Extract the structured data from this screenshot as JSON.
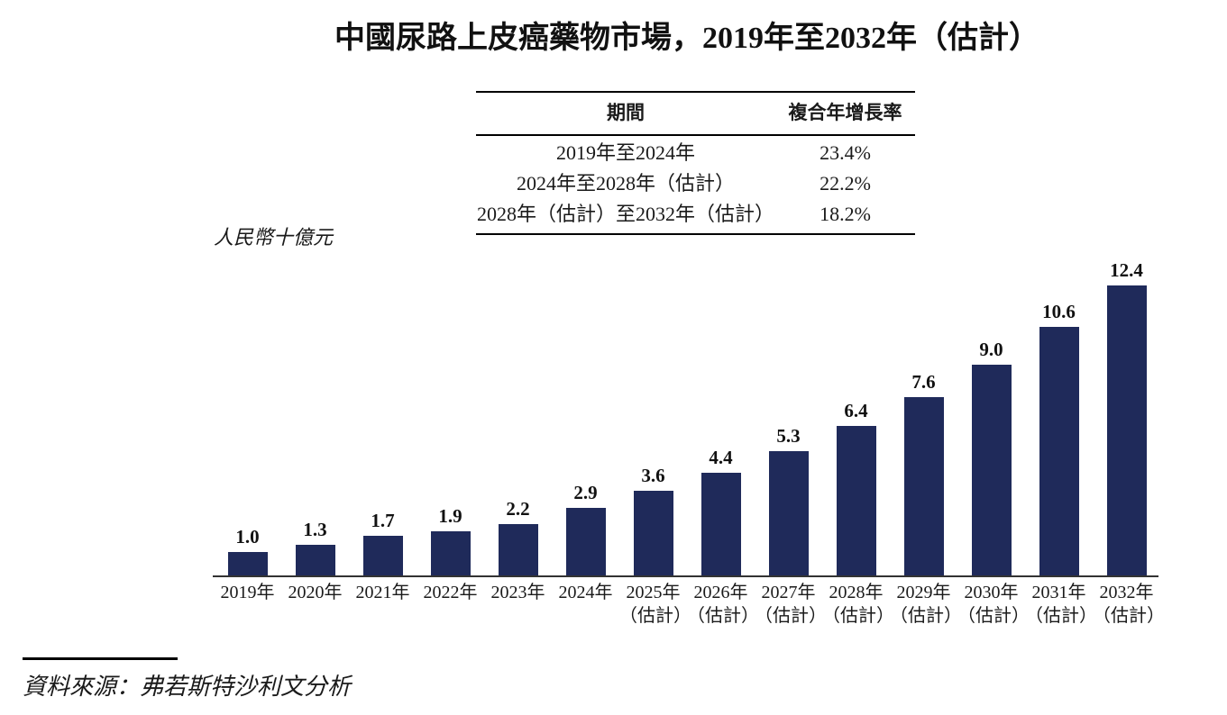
{
  "page": {
    "title_zh": "中國尿路上皮癌藥物市場，",
    "title_range": "2019年至2032年（估計）",
    "unit_label": "人民幣十億元",
    "source": "資料來源：弗若斯特沙利文分析"
  },
  "cagr_table": {
    "col_period": "期間",
    "col_cagr": "複合年增長率",
    "rows": [
      {
        "period": "2019年至2024年",
        "cagr": "23.4%"
      },
      {
        "period": "2024年至2028年（估計）",
        "cagr": "22.2%"
      },
      {
        "period": "2028年（估計）至2032年（估計）",
        "cagr": "18.2%"
      }
    ]
  },
  "chart_data": {
    "type": "bar",
    "title": "中國尿路上皮癌藥物市場，2019年至2032年（估計）",
    "ylabel": "人民幣十億元",
    "xlabel": "",
    "categories": [
      "2019年",
      "2020年",
      "2021年",
      "2022年",
      "2023年",
      "2024年",
      "2025年",
      "2026年",
      "2027年",
      "2028年",
      "2029年",
      "2030年",
      "2031年",
      "2032年"
    ],
    "category_notes": [
      "",
      "",
      "",
      "",
      "",
      "",
      "（估計）",
      "（估計）",
      "（估計）",
      "（估計）",
      "（估計）",
      "（估計）",
      "（估計）",
      "（估計）"
    ],
    "values": [
      1.0,
      1.3,
      1.7,
      1.9,
      2.2,
      2.9,
      3.6,
      4.4,
      5.3,
      6.4,
      7.6,
      9.0,
      10.6,
      12.4
    ],
    "bar_color": "#1f2a5a",
    "ylim": [
      0,
      13
    ],
    "grid": false,
    "legend": "none",
    "source_note": "資料來源：弗若斯特沙利文分析",
    "cagr_annotations": [
      {
        "period": "2019年至2024年",
        "cagr_pct": 23.4
      },
      {
        "period": "2024年至2028年（估計）",
        "cagr_pct": 22.2
      },
      {
        "period": "2028年（估計）至2032年（估計）",
        "cagr_pct": 18.2
      }
    ]
  }
}
